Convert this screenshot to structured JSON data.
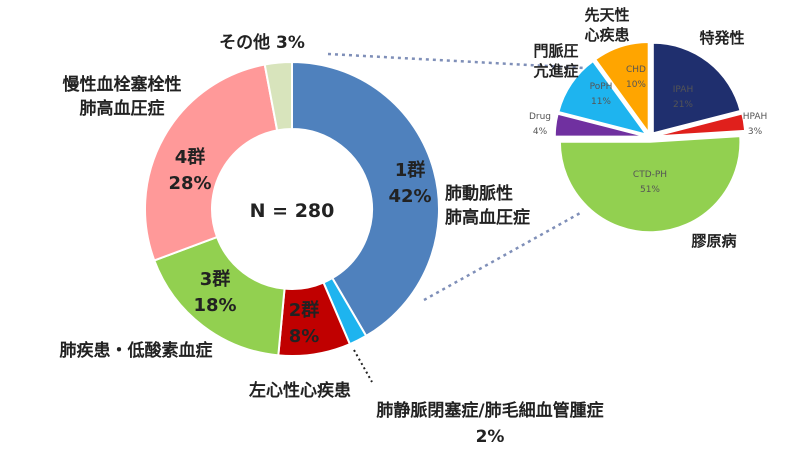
{
  "chart_data": [
    {
      "type": "pie",
      "variant": "donut",
      "center_label": "N = 280",
      "slices": [
        {
          "category": "肺動脈性\n肺高血圧症",
          "group": "1群",
          "pct_label": "42%",
          "value": 42,
          "color": "#4f81bd"
        },
        {
          "category": "肺静脈閉塞症/肺毛細血管腫症",
          "group": "",
          "pct_label": "2%",
          "value": 2,
          "color": "#1eb4ef"
        },
        {
          "category": "左心性心疾患",
          "group": "2群",
          "pct_label": "8%",
          "value": 8,
          "color": "#c00000"
        },
        {
          "category": "肺疾患・低酸素血症",
          "group": "3群",
          "pct_label": "18%",
          "value": 18,
          "color": "#92d050"
        },
        {
          "category": "慢性血栓塞栓性\n肺高血圧症",
          "group": "4群",
          "pct_label": "28%",
          "value": 28,
          "color": "#ff9999"
        },
        {
          "category": "その他",
          "group": "",
          "pct_label": "3%",
          "value": 3,
          "color": "#d8e4bc"
        }
      ]
    },
    {
      "type": "pie",
      "slices": [
        {
          "label": "IPAH",
          "pct_label": "21%",
          "value": 21,
          "color": "#1f2f6e",
          "category": "特発性"
        },
        {
          "label": "HPAH",
          "pct_label": "3%",
          "value": 3,
          "color": "#e0201c",
          "category": ""
        },
        {
          "label": "CTD-PH",
          "pct_label": "51%",
          "value": 51,
          "color": "#92d050",
          "category": "膠原病"
        },
        {
          "label": "Drug",
          "pct_label": "4%",
          "value": 4,
          "color": "#7030a0",
          "category": ""
        },
        {
          "label": "PoPH",
          "pct_label": "11%",
          "value": 11,
          "color": "#1eb4ef",
          "category": "門脈圧\n亢進症"
        },
        {
          "label": "CHD",
          "pct_label": "10%",
          "value": 10,
          "color": "#ffa500",
          "category": "先天性\n心疾患"
        }
      ]
    }
  ]
}
